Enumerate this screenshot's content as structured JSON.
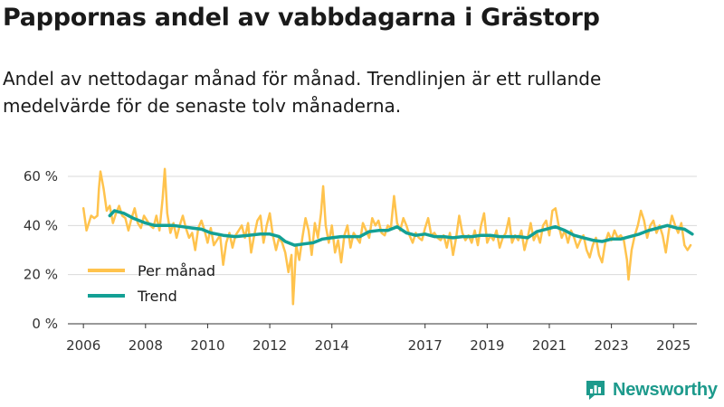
{
  "title": "Pappornas andel av vabbdagarna i Grästorp",
  "subtitle": "Andel av nettodagar månad för månad. Trendlinjen är ett rullande medelvärde för de senaste tolv månaderna.",
  "brand": "Newsworthy",
  "colors": {
    "monthly": "#ffc34d",
    "trend": "#13a095",
    "grid": "#d9d9d9",
    "axis": "#333333",
    "brand": "#1d9a8c"
  },
  "icons": {
    "brand_logo": "bar-chart-badge-icon"
  },
  "chart_data": {
    "type": "line",
    "title": "Pappornas andel av vabbdagarna i Grästorp",
    "xlabel": "",
    "ylabel": "",
    "ylim": [
      0,
      60
    ],
    "xlim": [
      2005.5,
      2025.75
    ],
    "yticks": [
      0,
      20,
      40,
      60
    ],
    "ytick_labels": [
      "0 %",
      "20 %",
      "40 %",
      "60 %"
    ],
    "xticks": [
      2006,
      2008,
      2010,
      2012,
      2014,
      2017,
      2019,
      2021,
      2023,
      2025
    ],
    "xtick_labels": [
      "2006",
      "2008",
      "2010",
      "2012",
      "2014",
      "2017",
      "2019",
      "2021",
      "2023",
      "2025"
    ],
    "grid": true,
    "legend_position": "bottom-left",
    "series": [
      {
        "name": "Per månad",
        "color": "#ffc34d",
        "points": [
          [
            2006.0,
            47
          ],
          [
            2006.1,
            38
          ],
          [
            2006.25,
            44
          ],
          [
            2006.35,
            43
          ],
          [
            2006.45,
            44
          ],
          [
            2006.5,
            55
          ],
          [
            2006.55,
            62
          ],
          [
            2006.65,
            55
          ],
          [
            2006.75,
            46
          ],
          [
            2006.85,
            48
          ],
          [
            2006.95,
            41
          ],
          [
            2007.05,
            45
          ],
          [
            2007.15,
            48
          ],
          [
            2007.25,
            44
          ],
          [
            2007.35,
            43
          ],
          [
            2007.45,
            38
          ],
          [
            2007.55,
            43
          ],
          [
            2007.65,
            47
          ],
          [
            2007.75,
            41
          ],
          [
            2007.85,
            39
          ],
          [
            2007.95,
            44
          ],
          [
            2008.05,
            42
          ],
          [
            2008.15,
            40
          ],
          [
            2008.25,
            39
          ],
          [
            2008.35,
            44
          ],
          [
            2008.45,
            38
          ],
          [
            2008.55,
            51
          ],
          [
            2008.62,
            63
          ],
          [
            2008.7,
            45
          ],
          [
            2008.8,
            37
          ],
          [
            2008.9,
            41
          ],
          [
            2009.0,
            35
          ],
          [
            2009.1,
            40
          ],
          [
            2009.2,
            44
          ],
          [
            2009.3,
            39
          ],
          [
            2009.4,
            35
          ],
          [
            2009.5,
            37
          ],
          [
            2009.6,
            30
          ],
          [
            2009.7,
            39
          ],
          [
            2009.8,
            42
          ],
          [
            2009.9,
            38
          ],
          [
            2010.0,
            33
          ],
          [
            2010.1,
            39
          ],
          [
            2010.2,
            32
          ],
          [
            2010.3,
            34
          ],
          [
            2010.4,
            36
          ],
          [
            2010.5,
            24
          ],
          [
            2010.6,
            33
          ],
          [
            2010.7,
            37
          ],
          [
            2010.8,
            31
          ],
          [
            2010.9,
            36
          ],
          [
            2011.0,
            38
          ],
          [
            2011.1,
            40
          ],
          [
            2011.2,
            35
          ],
          [
            2011.3,
            41
          ],
          [
            2011.4,
            29
          ],
          [
            2011.5,
            36
          ],
          [
            2011.6,
            42
          ],
          [
            2011.7,
            44
          ],
          [
            2011.8,
            33
          ],
          [
            2011.9,
            40
          ],
          [
            2012.0,
            45
          ],
          [
            2012.1,
            36
          ],
          [
            2012.2,
            30
          ],
          [
            2012.3,
            35
          ],
          [
            2012.4,
            33
          ],
          [
            2012.5,
            29
          ],
          [
            2012.6,
            21
          ],
          [
            2012.7,
            28
          ],
          [
            2012.75,
            8
          ],
          [
            2012.85,
            32
          ],
          [
            2012.95,
            26
          ],
          [
            2013.05,
            35
          ],
          [
            2013.15,
            43
          ],
          [
            2013.25,
            38
          ],
          [
            2013.35,
            28
          ],
          [
            2013.45,
            41
          ],
          [
            2013.55,
            35
          ],
          [
            2013.65,
            45
          ],
          [
            2013.72,
            56
          ],
          [
            2013.8,
            40
          ],
          [
            2013.9,
            33
          ],
          [
            2014.0,
            40
          ],
          [
            2014.1,
            29
          ],
          [
            2014.2,
            34
          ],
          [
            2014.3,
            25
          ],
          [
            2014.4,
            36
          ],
          [
            2014.5,
            40
          ],
          [
            2014.6,
            31
          ],
          [
            2014.7,
            37
          ],
          [
            2014.8,
            35
          ],
          [
            2014.9,
            33
          ],
          [
            2015.0,
            41
          ],
          [
            2015.1,
            38
          ],
          [
            2015.2,
            35
          ],
          [
            2015.3,
            43
          ],
          [
            2015.4,
            40
          ],
          [
            2015.5,
            42
          ],
          [
            2015.6,
            37
          ],
          [
            2015.7,
            36
          ],
          [
            2015.8,
            40
          ],
          [
            2015.9,
            39
          ],
          [
            2016.0,
            52
          ],
          [
            2016.1,
            41
          ],
          [
            2016.2,
            38
          ],
          [
            2016.3,
            43
          ],
          [
            2016.4,
            40
          ],
          [
            2016.5,
            36
          ],
          [
            2016.6,
            33
          ],
          [
            2016.7,
            37
          ],
          [
            2016.8,
            35
          ],
          [
            2016.9,
            34
          ],
          [
            2017.0,
            39
          ],
          [
            2017.1,
            43
          ],
          [
            2017.2,
            36
          ],
          [
            2017.3,
            37
          ],
          [
            2017.4,
            35
          ],
          [
            2017.5,
            34
          ],
          [
            2017.6,
            36
          ],
          [
            2017.7,
            31
          ],
          [
            2017.8,
            37
          ],
          [
            2017.9,
            28
          ],
          [
            2018.0,
            35
          ],
          [
            2018.1,
            44
          ],
          [
            2018.2,
            37
          ],
          [
            2018.3,
            34
          ],
          [
            2018.4,
            36
          ],
          [
            2018.5,
            33
          ],
          [
            2018.6,
            38
          ],
          [
            2018.7,
            32
          ],
          [
            2018.8,
            40
          ],
          [
            2018.9,
            45
          ],
          [
            2019.0,
            33
          ],
          [
            2019.1,
            36
          ],
          [
            2019.2,
            34
          ],
          [
            2019.3,
            38
          ],
          [
            2019.4,
            31
          ],
          [
            2019.5,
            35
          ],
          [
            2019.6,
            37
          ],
          [
            2019.7,
            43
          ],
          [
            2019.8,
            33
          ],
          [
            2019.9,
            36
          ],
          [
            2020.0,
            34
          ],
          [
            2020.1,
            38
          ],
          [
            2020.2,
            30
          ],
          [
            2020.3,
            35
          ],
          [
            2020.4,
            41
          ],
          [
            2020.5,
            34
          ],
          [
            2020.6,
            37
          ],
          [
            2020.7,
            33
          ],
          [
            2020.8,
            40
          ],
          [
            2020.9,
            42
          ],
          [
            2021.0,
            36
          ],
          [
            2021.1,
            46
          ],
          [
            2021.2,
            47
          ],
          [
            2021.3,
            40
          ],
          [
            2021.4,
            35
          ],
          [
            2021.5,
            38
          ],
          [
            2021.6,
            33
          ],
          [
            2021.7,
            38
          ],
          [
            2021.8,
            35
          ],
          [
            2021.9,
            31
          ],
          [
            2022.0,
            34
          ],
          [
            2022.1,
            36
          ],
          [
            2022.2,
            30
          ],
          [
            2022.3,
            27
          ],
          [
            2022.4,
            32
          ],
          [
            2022.5,
            35
          ],
          [
            2022.6,
            28
          ],
          [
            2022.7,
            25
          ],
          [
            2022.8,
            33
          ],
          [
            2022.9,
            37
          ],
          [
            2023.0,
            34
          ],
          [
            2023.1,
            38
          ],
          [
            2023.2,
            35
          ],
          [
            2023.3,
            36
          ],
          [
            2023.4,
            34
          ],
          [
            2023.5,
            26
          ],
          [
            2023.55,
            18
          ],
          [
            2023.65,
            30
          ],
          [
            2023.75,
            36
          ],
          [
            2023.85,
            40
          ],
          [
            2023.95,
            46
          ],
          [
            2024.05,
            42
          ],
          [
            2024.15,
            35
          ],
          [
            2024.25,
            40
          ],
          [
            2024.35,
            42
          ],
          [
            2024.45,
            37
          ],
          [
            2024.55,
            40
          ],
          [
            2024.65,
            36
          ],
          [
            2024.75,
            29
          ],
          [
            2024.85,
            38
          ],
          [
            2024.95,
            44
          ],
          [
            2025.05,
            40
          ],
          [
            2025.15,
            37
          ],
          [
            2025.25,
            41
          ],
          [
            2025.35,
            32
          ],
          [
            2025.45,
            30
          ],
          [
            2025.55,
            32
          ]
        ]
      },
      {
        "name": "Trend",
        "color": "#13a095",
        "points": [
          [
            2006.85,
            44
          ],
          [
            2007.0,
            46
          ],
          [
            2007.3,
            45
          ],
          [
            2007.6,
            43
          ],
          [
            2008.0,
            41
          ],
          [
            2008.3,
            40
          ],
          [
            2008.6,
            40
          ],
          [
            2008.9,
            40
          ],
          [
            2009.2,
            39.5
          ],
          [
            2009.5,
            39
          ],
          [
            2009.8,
            38.5
          ],
          [
            2010.1,
            37
          ],
          [
            2010.5,
            36
          ],
          [
            2010.9,
            35.5
          ],
          [
            2011.3,
            36
          ],
          [
            2011.7,
            36.5
          ],
          [
            2012.0,
            36.5
          ],
          [
            2012.3,
            35.5
          ],
          [
            2012.5,
            33.5
          ],
          [
            2012.8,
            32
          ],
          [
            2013.1,
            32.5
          ],
          [
            2013.4,
            33
          ],
          [
            2013.7,
            34.5
          ],
          [
            2014.0,
            35
          ],
          [
            2014.3,
            35.5
          ],
          [
            2014.6,
            35.5
          ],
          [
            2014.9,
            35.5
          ],
          [
            2015.2,
            37.5
          ],
          [
            2015.5,
            38
          ],
          [
            2015.8,
            38
          ],
          [
            2016.1,
            39.5
          ],
          [
            2016.4,
            37
          ],
          [
            2016.7,
            36
          ],
          [
            2017.0,
            36.5
          ],
          [
            2017.3,
            35.5
          ],
          [
            2017.6,
            35.5
          ],
          [
            2017.9,
            35
          ],
          [
            2018.2,
            35.5
          ],
          [
            2018.5,
            35.5
          ],
          [
            2018.8,
            36
          ],
          [
            2019.1,
            36
          ],
          [
            2019.4,
            35.5
          ],
          [
            2019.7,
            35.5
          ],
          [
            2020.0,
            35.5
          ],
          [
            2020.3,
            35
          ],
          [
            2020.6,
            37.5
          ],
          [
            2020.9,
            38.5
          ],
          [
            2021.2,
            39.5
          ],
          [
            2021.5,
            38
          ],
          [
            2021.8,
            36
          ],
          [
            2022.1,
            35
          ],
          [
            2022.4,
            34
          ],
          [
            2022.7,
            33.5
          ],
          [
            2023.0,
            34.5
          ],
          [
            2023.3,
            34.5
          ],
          [
            2023.6,
            35.5
          ],
          [
            2023.9,
            36.5
          ],
          [
            2024.2,
            38
          ],
          [
            2024.5,
            39
          ],
          [
            2024.8,
            40
          ],
          [
            2025.1,
            39
          ],
          [
            2025.35,
            38.5
          ],
          [
            2025.6,
            36.5
          ]
        ]
      }
    ]
  }
}
